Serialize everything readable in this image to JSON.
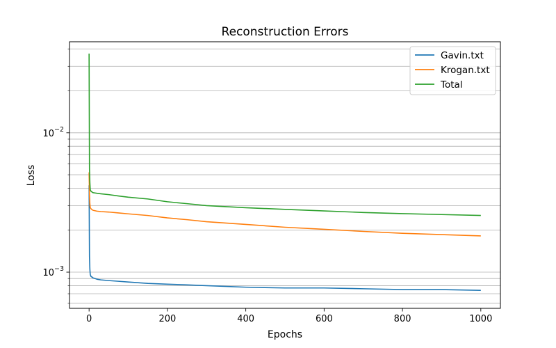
{
  "chart_data": {
    "type": "line",
    "title": "Reconstruction Errors",
    "xlabel": "Epochs",
    "ylabel": "Loss",
    "xlim": [
      -50,
      1050
    ],
    "ylim": [
      0.00055,
      0.045
    ],
    "yscale": "log",
    "grid": "y-major-and-minor",
    "legend_position": "top-right",
    "x_ticks": [
      0,
      200,
      400,
      600,
      800,
      1000
    ],
    "y_major_ticks": [
      0.001,
      0.01
    ],
    "y_tick_labels": [
      {
        "base": "10",
        "exp": "−3"
      },
      {
        "base": "10",
        "exp": "−2"
      }
    ],
    "series": [
      {
        "name": "Gavin.txt",
        "color": "#1f77b4",
        "x": [
          0,
          1,
          2,
          3,
          5,
          8,
          10,
          15,
          20,
          30,
          50,
          75,
          100,
          150,
          200,
          250,
          300,
          400,
          500,
          600,
          700,
          800,
          900,
          1000
        ],
        "values": [
          0.0042,
          0.0013,
          0.00105,
          0.00096,
          0.00093,
          0.00092,
          0.00091,
          0.0009,
          0.00089,
          0.00088,
          0.00087,
          0.00086,
          0.00085,
          0.00083,
          0.00082,
          0.00081,
          0.0008,
          0.00078,
          0.00077,
          0.00077,
          0.00076,
          0.00075,
          0.00075,
          0.00074
        ]
      },
      {
        "name": "Krogan.txt",
        "color": "#ff7f0e",
        "x": [
          0,
          1,
          2,
          3,
          5,
          8,
          10,
          15,
          20,
          30,
          50,
          75,
          100,
          150,
          200,
          250,
          300,
          400,
          500,
          600,
          700,
          800,
          900,
          1000
        ],
        "values": [
          0.0052,
          0.0036,
          0.0031,
          0.0029,
          0.00285,
          0.0028,
          0.00278,
          0.00276,
          0.00274,
          0.00272,
          0.0027,
          0.00266,
          0.00262,
          0.00255,
          0.00245,
          0.00238,
          0.0023,
          0.0022,
          0.0021,
          0.00203,
          0.00196,
          0.0019,
          0.00186,
          0.00182
        ]
      },
      {
        "name": "Total",
        "color": "#2ca02c",
        "x": [
          0,
          1,
          2,
          3,
          5,
          8,
          10,
          15,
          20,
          30,
          50,
          75,
          100,
          150,
          200,
          250,
          300,
          400,
          500,
          600,
          700,
          800,
          900,
          1000
        ],
        "values": [
          0.037,
          0.0055,
          0.0044,
          0.0039,
          0.0038,
          0.00375,
          0.00372,
          0.0037,
          0.00368,
          0.00365,
          0.0036,
          0.00352,
          0.00345,
          0.00335,
          0.0032,
          0.0031,
          0.003,
          0.0029,
          0.00282,
          0.00275,
          0.00268,
          0.00263,
          0.00259,
          0.00255
        ]
      }
    ]
  }
}
